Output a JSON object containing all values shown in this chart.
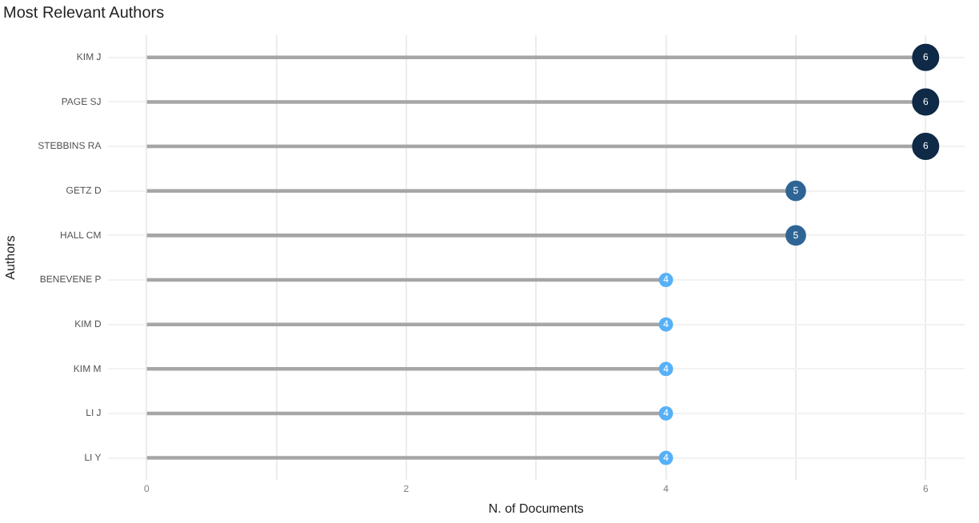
{
  "chart_data": {
    "type": "lollipop",
    "orientation": "horizontal",
    "title": "Most Relevant Authors",
    "xlabel": "N. of Documents",
    "ylabel": "Authors",
    "categories": [
      "KIM J",
      "PAGE SJ",
      "STEBBINS RA",
      "GETZ D",
      "HALL CM",
      "BENEVENE P",
      "KIM D",
      "KIM M",
      "LI J",
      "LI Y"
    ],
    "values": [
      6,
      6,
      6,
      5,
      5,
      4,
      4,
      4,
      4,
      4
    ],
    "sizes": [
      1,
      1,
      1,
      0.55,
      0.55,
      0.25,
      0.25,
      0.25,
      0.25,
      0.25
    ],
    "colors": [
      "#0e2a47",
      "#0e2a47",
      "#0e2a47",
      "#2f6595",
      "#2f6595",
      "#56b1f7",
      "#56b1f7",
      "#56b1f7",
      "#56b1f7",
      "#56b1f7"
    ],
    "xlim": [
      -0.3,
      6.3
    ],
    "xticks": [
      0,
      {
        "value": 1,
        "label": null
      },
      2,
      {
        "value": 3,
        "label": null
      },
      4,
      {
        "value": 5,
        "label": null
      },
      6
    ],
    "grid": true,
    "data_labels": true
  }
}
